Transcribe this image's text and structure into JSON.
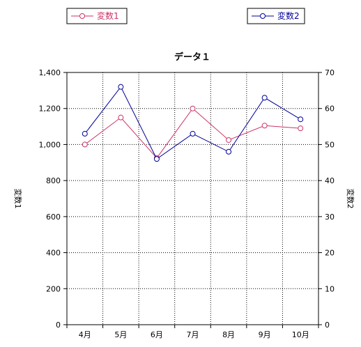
{
  "chart_data": {
    "type": "line",
    "title": "データ１",
    "categories": [
      "4月",
      "5月",
      "6月",
      "7月",
      "8月",
      "9月",
      "10月"
    ],
    "y_left": {
      "label": "変数1",
      "ylim": [
        0,
        1400
      ],
      "ticks": [
        "0",
        "200",
        "400",
        "600",
        "800",
        "1,000",
        "1,200",
        "1,400"
      ]
    },
    "y_right": {
      "label": "変数2",
      "ylim": [
        0,
        70
      ],
      "ticks": [
        "0",
        "10",
        "20",
        "30",
        "40",
        "50",
        "60",
        "70"
      ]
    },
    "grid": true,
    "legend_placement": "top",
    "series": [
      {
        "name": "変数1",
        "axis": "left",
        "color": "#cc3366",
        "values": [
          1000,
          1150,
          925,
          1200,
          1025,
          1105,
          1090
        ]
      },
      {
        "name": "変数2",
        "axis": "right",
        "color": "#000099",
        "values": [
          53,
          66,
          46,
          53,
          48,
          63,
          57
        ]
      }
    ]
  }
}
